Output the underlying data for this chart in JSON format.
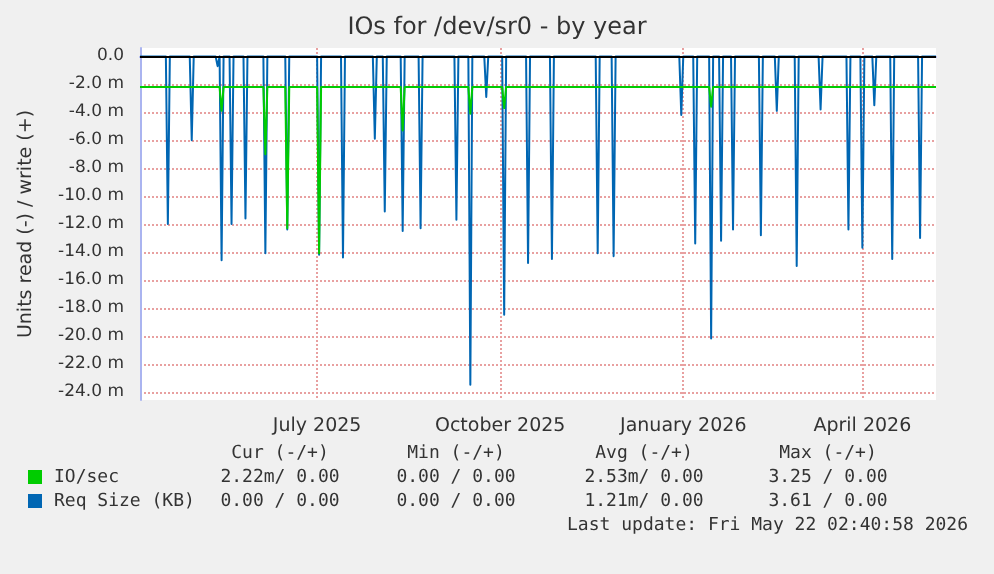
{
  "chart_data": {
    "type": "line",
    "title": "IOs for /dev/sr0 - by year",
    "ylabel": "Units read (-) / write (+)",
    "xlim": [
      "2025-04-17",
      "2026-05-22"
    ],
    "xticks": [
      {
        "value": "2025-07-15",
        "label": "July 2025"
      },
      {
        "value": "2025-10-15",
        "label": "October 2025"
      },
      {
        "value": "2026-01-15",
        "label": "January 2026"
      },
      {
        "value": "2026-04-15",
        "label": "April 2026"
      }
    ],
    "ylim": [
      -24.6,
      0.6
    ],
    "yticks": [
      {
        "value": 0,
        "label": "0.0"
      },
      {
        "value": -2,
        "label": "-2.0 m"
      },
      {
        "value": -4,
        "label": "-4.0 m"
      },
      {
        "value": -6,
        "label": "-6.0 m"
      },
      {
        "value": -8,
        "label": "-8.0 m"
      },
      {
        "value": -10,
        "label": "-10.0 m"
      },
      {
        "value": -12,
        "label": "-12.0 m"
      },
      {
        "value": -14,
        "label": "-14.0 m"
      },
      {
        "value": -16,
        "label": "-16.0 m"
      },
      {
        "value": -18,
        "label": "-18.0 m"
      },
      {
        "value": -20,
        "label": "-20.0 m"
      },
      {
        "value": -22,
        "label": "-22.0 m"
      },
      {
        "value": -24,
        "label": "-24.0 m"
      }
    ],
    "grid": true,
    "legend": "bottom",
    "ref_lines": [
      {
        "axis": "y",
        "value": 0,
        "color": "#000000"
      }
    ],
    "series": [
      {
        "name": "IO/sec",
        "color": "#00cc00",
        "x": [
          "2025-04-17",
          "2025-05-27",
          "2025-05-28",
          "2025-05-29",
          "2025-06-18",
          "2025-06-19",
          "2025-06-20",
          "2025-06-29",
          "2025-06-30",
          "2025-07-01",
          "2025-07-15",
          "2025-07-16",
          "2025-07-17",
          "2025-08-26",
          "2025-08-27",
          "2025-08-28",
          "2025-09-29",
          "2025-09-30",
          "2025-10-01",
          "2025-10-16",
          "2025-10-17",
          "2025-10-18",
          "2026-01-28",
          "2026-01-29",
          "2026-01-30",
          "2026-05-22"
        ],
        "values": [
          -2.2,
          -2.2,
          -3.9,
          -2.2,
          -2.2,
          -7.0,
          -2.2,
          -2.2,
          -12.3,
          -2.2,
          -2.2,
          -14.1,
          -2.2,
          -2.2,
          -5.3,
          -2.2,
          -2.2,
          -4.1,
          -2.2,
          -2.2,
          -3.7,
          -2.2,
          -2.2,
          -3.6,
          -2.2,
          -2.2
        ]
      },
      {
        "name": "Req Size (KB)",
        "color": "#0066b3",
        "x": [
          "2025-04-17",
          "2025-04-30",
          "2025-05-01",
          "2025-05-02",
          "2025-05-12",
          "2025-05-13",
          "2025-05-14",
          "2025-05-25",
          "2025-05-26",
          "2025-05-27",
          "2025-05-28",
          "2025-05-29",
          "2025-06-01",
          "2025-06-02",
          "2025-06-03",
          "2025-06-08",
          "2025-06-09",
          "2025-06-10",
          "2025-06-18",
          "2025-06-19",
          "2025-06-20",
          "2025-06-29",
          "2025-06-30",
          "2025-07-01",
          "2025-07-15",
          "2025-07-16",
          "2025-07-17",
          "2025-07-27",
          "2025-07-28",
          "2025-07-29",
          "2025-08-12",
          "2025-08-13",
          "2025-08-14",
          "2025-08-17",
          "2025-08-18",
          "2025-08-19",
          "2025-08-26",
          "2025-08-27",
          "2025-08-28",
          "2025-09-04",
          "2025-09-05",
          "2025-09-06",
          "2025-09-22",
          "2025-09-23",
          "2025-09-24",
          "2025-09-29",
          "2025-09-30",
          "2025-10-01",
          "2025-10-07",
          "2025-10-08",
          "2025-10-09",
          "2025-10-16",
          "2025-10-17",
          "2025-10-18",
          "2025-10-28",
          "2025-10-29",
          "2025-10-30",
          "2025-11-09",
          "2025-11-10",
          "2025-11-11",
          "2025-12-02",
          "2025-12-03",
          "2025-12-04",
          "2025-12-10",
          "2025-12-11",
          "2025-12-12",
          "2026-01-13",
          "2026-01-14",
          "2026-01-15",
          "2026-01-20",
          "2026-01-21",
          "2026-01-22",
          "2026-01-28",
          "2026-01-29",
          "2026-01-30",
          "2026-02-02",
          "2026-02-03",
          "2026-02-04",
          "2026-02-08",
          "2026-02-09",
          "2026-02-10",
          "2026-02-22",
          "2026-02-23",
          "2026-02-24",
          "2026-03-02",
          "2026-03-03",
          "2026-03-04",
          "2026-03-12",
          "2026-03-13",
          "2026-03-14",
          "2026-03-24",
          "2026-03-25",
          "2026-03-26",
          "2026-04-07",
          "2026-04-08",
          "2026-04-09",
          "2026-04-14",
          "2026-04-15",
          "2026-04-16",
          "2026-04-20",
          "2026-04-21",
          "2026-04-22",
          "2026-04-29",
          "2026-04-30",
          "2026-05-01",
          "2026-05-13",
          "2026-05-14",
          "2026-05-15",
          "2026-05-22"
        ],
        "values": [
          0,
          0,
          -12.0,
          0,
          0,
          -6.0,
          0,
          0,
          -0.7,
          0,
          -14.6,
          0,
          0,
          -12.0,
          0,
          0,
          -11.6,
          0,
          0,
          -14.1,
          0,
          0,
          -12.4,
          0,
          0,
          -14.2,
          0,
          0,
          -14.4,
          0,
          0,
          -5.9,
          0,
          0,
          -11.1,
          0,
          0,
          -12.5,
          0,
          0,
          -12.3,
          0,
          0,
          -11.7,
          0,
          0,
          -23.5,
          0,
          0,
          -2.9,
          0,
          0,
          -18.5,
          0,
          0,
          -14.8,
          0,
          0,
          -14.5,
          0,
          0,
          -14.1,
          0,
          0,
          -14.3,
          0,
          0,
          -4.2,
          0,
          0,
          -13.4,
          0,
          0,
          -20.2,
          0,
          0,
          -13.2,
          0,
          0,
          -12.4,
          0,
          0,
          -12.8,
          0,
          0,
          -3.9,
          0,
          0,
          -15.0,
          0,
          0,
          -3.8,
          0,
          0,
          -12.4,
          0,
          0,
          -13.7,
          0,
          0,
          -3.5,
          0,
          0,
          -14.5,
          0,
          0,
          -13.0,
          0,
          0
        ]
      }
    ],
    "annotations": [
      "Cur (-/+)",
      "Min (-/+)",
      "Avg (-/+)",
      "Max (-/+)",
      "2.22m/ 0.00",
      "0.00 / 0.00",
      "2.53m/ 0.00",
      "3.25 / 0.00",
      "0.00 / 0.00",
      "0.00 / 0.00",
      "1.21m/ 0.00",
      "3.61 / 0.00",
      "Last update: Fri May 22 02:40:58 2026"
    ]
  }
}
